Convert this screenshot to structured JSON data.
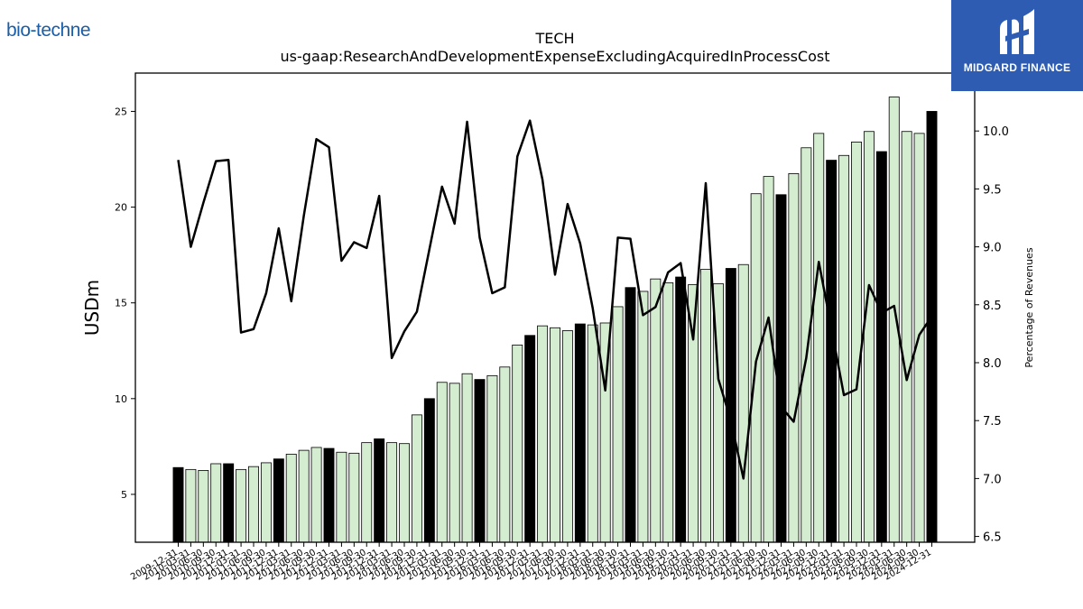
{
  "logos": {
    "left_text": "bio-techne",
    "right_text": "MIDGARD FINANCE"
  },
  "chart_data": {
    "type": "bar+line",
    "title": "TECH",
    "subtitle": "us-gaap:ResearchAndDevelopmentExpenseExcludingAcquiredInProcessCost",
    "ylabel": "USDm",
    "y2label": "Percentage of Revenues",
    "ylim": [
      2.5,
      27
    ],
    "y2lim": [
      6.45,
      10.5
    ],
    "yticks": [
      5,
      10,
      15,
      20,
      25
    ],
    "y2ticks": [
      6.5,
      7.0,
      7.5,
      8.0,
      8.5,
      9.0,
      9.5,
      10.0
    ],
    "x_tick_labels": [
      "2009-12-31",
      "2010-03-31",
      "2010-06-30",
      "2010-09-30",
      "2010-12-31",
      "2011-03-31",
      "2011-06-30",
      "2011-09-30",
      "2011-12-31",
      "2012-03-31",
      "2012-06-30",
      "2012-09-30",
      "2012-12-31",
      "2013-03-31",
      "2013-06-30",
      "2013-09-30",
      "2013-12-31",
      "2014-03-31",
      "2014-06-30",
      "2014-09-30",
      "2014-12-31",
      "2015-03-31",
      "2015-06-30",
      "2015-09-30",
      "2015-12-31",
      "2016-03-31",
      "2016-06-30",
      "2016-09-30",
      "2016-12-31",
      "2017-03-31",
      "2017-06-30",
      "2017-09-30",
      "2017-12-31",
      "2018-03-31",
      "2018-06-30",
      "2018-09-30",
      "2018-12-31",
      "2019-03-31",
      "2019-06-30",
      "2019-09-30",
      "2019-12-31",
      "2020-03-31",
      "2020-06-30",
      "2020-09-30",
      "2020-12-31",
      "2021-03-31",
      "2021-06-30",
      "2021-09-30",
      "2021-12-31",
      "2022-03-31",
      "2022-06-30",
      "2022-09-30",
      "2022-12-31",
      "2023-03-31",
      "2023-06-30",
      "2023-09-30",
      "2023-12-31",
      "2024-03-31",
      "2024-06-30",
      "2024-09-30",
      "2024-12-31"
    ],
    "bar_categories": [
      "2009-12-31",
      "2010-03-31",
      "2010-06-30",
      "2010-09-30",
      "2010-12-31",
      "2011-03-31",
      "2011-06-30",
      "2011-09-30",
      "2011-12-31",
      "2012-03-31",
      "2012-06-30",
      "2012-09-30",
      "2012-12-31",
      "2013-03-31",
      "2013-06-30",
      "2013-09-30",
      "2013-12-31",
      "2014-03-31",
      "2014-06-30",
      "2014-09-30",
      "2014-12-31",
      "2015-03-31",
      "2015-06-30",
      "2015-09-30",
      "2015-12-31",
      "2016-03-31",
      "2016-06-30",
      "2016-09-30",
      "2016-12-31",
      "2017-03-31",
      "2017-06-30",
      "2017-09-30",
      "2017-12-31",
      "2018-03-31",
      "2018-06-30",
      "2018-09-30",
      "2018-12-31",
      "2019-03-31",
      "2019-06-30",
      "2019-09-30",
      "2019-12-31",
      "2020-03-31",
      "2020-06-30",
      "2020-09-30",
      "2020-12-31",
      "2021-03-31",
      "2021-06-30",
      "2021-09-30",
      "2021-12-31",
      "2022-03-31",
      "2022-06-30",
      "2022-09-30",
      "2022-12-31",
      "2023-03-31",
      "2023-06-30",
      "2023-09-30",
      "2023-12-31",
      "2024-03-31",
      "2024-06-30",
      "2024-09-30",
      "2024-12-31"
    ],
    "bar_values": [
      6.4,
      6.3,
      6.25,
      6.6,
      6.6,
      6.3,
      6.45,
      6.65,
      6.85,
      7.1,
      7.3,
      7.45,
      7.4,
      7.2,
      7.15,
      7.7,
      7.9,
      7.7,
      7.65,
      9.15,
      10.0,
      10.85,
      10.8,
      11.3,
      11.0,
      11.2,
      11.65,
      12.8,
      13.3,
      13.8,
      13.7,
      13.55,
      13.9,
      13.85,
      13.95,
      14.8,
      15.8,
      15.6,
      16.25,
      16.05,
      16.35,
      15.95,
      16.75,
      16.0,
      16.8,
      17.0,
      20.7,
      21.6,
      20.65,
      21.75,
      23.1,
      23.85,
      22.45,
      22.7,
      23.4,
      23.95,
      22.9,
      25.75,
      23.95,
      23.85,
      25.0
    ],
    "bar_highlight": [
      true,
      false,
      false,
      false,
      true,
      false,
      false,
      false,
      true,
      false,
      false,
      false,
      true,
      false,
      false,
      false,
      true,
      false,
      false,
      false,
      true,
      false,
      false,
      false,
      true,
      false,
      false,
      false,
      true,
      false,
      false,
      false,
      true,
      false,
      false,
      false,
      true,
      false,
      false,
      false,
      true,
      false,
      false,
      false,
      true,
      false,
      false,
      false,
      true,
      false,
      false,
      false,
      true,
      false,
      false,
      false,
      true,
      false,
      false,
      false,
      true
    ],
    "line_values": [
      9.75,
      9.0,
      9.38,
      9.74,
      9.75,
      8.26,
      8.29,
      8.6,
      9.16,
      8.53,
      9.27,
      9.93,
      9.86,
      8.88,
      9.04,
      8.99,
      9.44,
      8.04,
      8.27,
      8.44,
      8.98,
      9.52,
      9.2,
      10.08,
      9.08,
      8.6,
      8.65,
      9.78,
      10.09,
      9.58,
      8.76,
      9.37,
      9.03,
      8.47,
      7.76,
      9.08,
      9.07,
      8.41,
      8.48,
      8.78,
      8.86,
      8.2,
      9.55,
      7.86,
      7.5,
      7.0,
      8.01,
      8.39,
      7.62,
      7.49,
      8.04,
      8.87,
      8.3,
      7.72,
      7.77,
      8.67,
      8.43,
      8.49,
      7.85,
      8.24,
      8.4
    ],
    "colors": {
      "bar_fill": "#d4ecd0",
      "bar_highlight": "#000000",
      "bar_edge": "#000000",
      "line": "#000000"
    },
    "grid": false
  }
}
